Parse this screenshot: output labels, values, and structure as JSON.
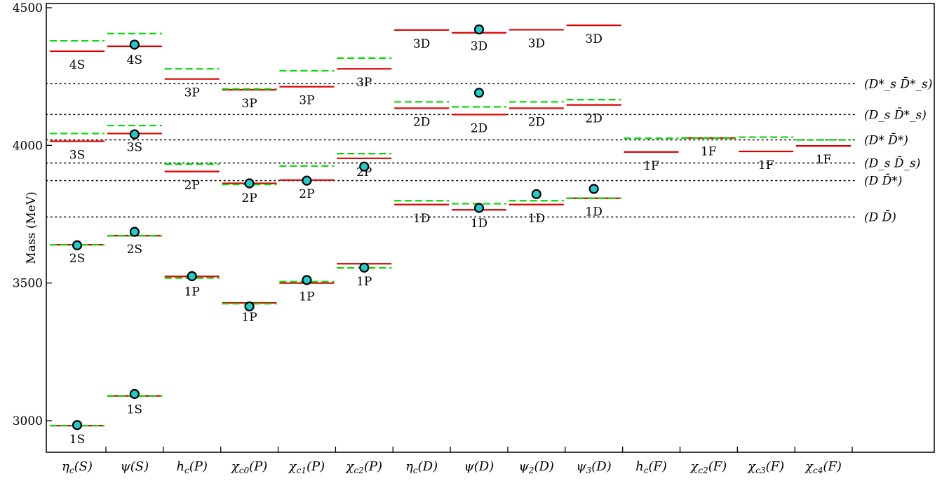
{
  "chart_data": {
    "type": "scatter",
    "ylabel": "Mass (MeV)",
    "xlabel": "",
    "ylim": [
      2950,
      4510
    ],
    "yticks": [
      3000,
      3500,
      4000,
      4500
    ],
    "categories": [
      "η_c(S)",
      "ψ(S)",
      "h_c(P)",
      "χ_c0(P)",
      "χ_c1(P)",
      "χ_c2(P)",
      "η_c(D)",
      "ψ(D)",
      "ψ_2(D)",
      "ψ_3(D)",
      "h_c(F)",
      "χ_c2(F)",
      "χ_c3(F)",
      "χ_c4(F)"
    ],
    "legend": [],
    "colors": {
      "model_solid": "#dd0000",
      "model_dashed": "#00dd00",
      "experiment_fill": "#22cccc",
      "threshold": "#000000"
    },
    "thresholds": [
      {
        "label": "(D*_s D̄*_s)",
        "mass": 4224
      },
      {
        "label": "(D_s D̄*_s)",
        "mass": 4112
      },
      {
        "label": "(D* D̄*)",
        "mass": 4020
      },
      {
        "label": "(D_s D̄_s)",
        "mass": 3936
      },
      {
        "label": "(D D̄*)",
        "mass": 3872
      },
      {
        "label": "(D D̄)",
        "mass": 3740
      }
    ],
    "states": [
      {
        "col": 0,
        "label": "1S",
        "solid": 2982,
        "dashed": 2982,
        "exp": 2984
      },
      {
        "col": 0,
        "label": "2S",
        "solid": 3639,
        "dashed": 3639,
        "exp": 3637
      },
      {
        "col": 0,
        "label": "3S",
        "solid": 4015,
        "dashed": 4043,
        "exp": null
      },
      {
        "col": 0,
        "label": "4S",
        "solid": 4342,
        "dashed": 4380,
        "exp": null
      },
      {
        "col": 1,
        "label": "1S",
        "solid": 3090,
        "dashed": 3090,
        "exp": 3097
      },
      {
        "col": 1,
        "label": "2S",
        "solid": 3672,
        "dashed": 3672,
        "exp": 3686
      },
      {
        "col": 1,
        "label": "3S",
        "solid": 4043,
        "dashed": 4072,
        "exp": 4040
      },
      {
        "col": 1,
        "label": "4S",
        "solid": 4360,
        "dashed": 4406,
        "exp": 4366
      },
      {
        "col": 2,
        "label": "1P",
        "solid": 3524,
        "dashed": 3518,
        "exp": 3525
      },
      {
        "col": 2,
        "label": "2P",
        "solid": 3905,
        "dashed": 3932,
        "exp": null
      },
      {
        "col": 2,
        "label": "3P",
        "solid": 4241,
        "dashed": 4278,
        "exp": null
      },
      {
        "col": 3,
        "label": "1P",
        "solid": 3428,
        "dashed": 3425,
        "exp": 3415
      },
      {
        "col": 3,
        "label": "2P",
        "solid": 3862,
        "dashed": 3858,
        "exp": 3862
      },
      {
        "col": 3,
        "label": "3P",
        "solid": 4202,
        "dashed": 4205,
        "exp": null
      },
      {
        "col": 4,
        "label": "1P",
        "solid": 3500,
        "dashed": 3505,
        "exp": 3511
      },
      {
        "col": 4,
        "label": "2P",
        "solid": 3874,
        "dashed": 3925,
        "exp": 3872
      },
      {
        "col": 4,
        "label": "3P",
        "solid": 4213,
        "dashed": 4271,
        "exp": null
      },
      {
        "col": 5,
        "label": "1P",
        "solid": 3570,
        "dashed": 3555,
        "exp": 3556
      },
      {
        "col": 5,
        "label": "2P",
        "solid": 3953,
        "dashed": 3970,
        "exp": 3923
      },
      {
        "col": 5,
        "label": "3P",
        "solid": 4278,
        "dashed": 4317,
        "exp": null
      },
      {
        "col": 6,
        "label": "1D",
        "solid": 3785,
        "dashed": 3799,
        "exp": null
      },
      {
        "col": 6,
        "label": "2D",
        "solid": 4135,
        "dashed": 4158,
        "exp": null
      },
      {
        "col": 6,
        "label": "3D",
        "solid": 4419,
        "dashed": null,
        "exp": null
      },
      {
        "col": 7,
        "label": "1D",
        "solid": 3766,
        "dashed": 3788,
        "exp": 3773
      },
      {
        "col": 7,
        "label": "2D",
        "solid": 4112,
        "dashed": 4140,
        "exp": 4191
      },
      {
        "col": 7,
        "label": "3D",
        "solid": 4409,
        "dashed": null,
        "exp": 4421
      },
      {
        "col": 8,
        "label": "1D",
        "solid": 3785,
        "dashed": 3799,
        "exp": 3823
      },
      {
        "col": 8,
        "label": "2D",
        "solid": 4135,
        "dashed": 4158,
        "exp": null
      },
      {
        "col": 8,
        "label": "3D",
        "solid": 4420,
        "dashed": null,
        "exp": null
      },
      {
        "col": 9,
        "label": "1D",
        "solid": 3808,
        "dashed": 3808,
        "exp": 3842
      },
      {
        "col": 9,
        "label": "2D",
        "solid": 4147,
        "dashed": 4166,
        "exp": null
      },
      {
        "col": 9,
        "label": "3D",
        "solid": 4436,
        "dashed": null,
        "exp": null
      },
      {
        "col": 10,
        "label": "1F",
        "solid": 3976,
        "dashed": 4026,
        "exp": null
      },
      {
        "col": 11,
        "label": "1F",
        "solid": 4027,
        "dashed": 4027,
        "exp": null
      },
      {
        "col": 12,
        "label": "1F",
        "solid": 3978,
        "dashed": 4030,
        "exp": null
      },
      {
        "col": 13,
        "label": "1F",
        "solid": 3998,
        "dashed": 4020,
        "exp": null
      }
    ]
  }
}
